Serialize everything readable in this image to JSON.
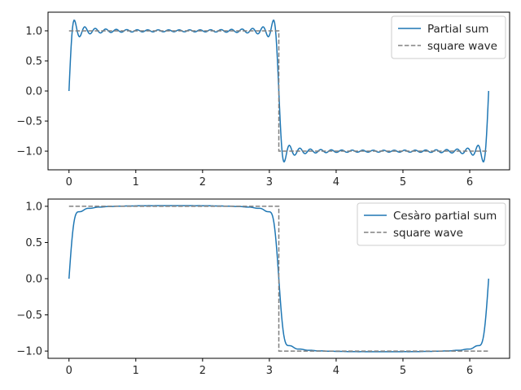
{
  "chart_data": [
    {
      "type": "line",
      "title": "",
      "xlabel": "",
      "ylabel": "",
      "xlim": [
        -0.314,
        6.597
      ],
      "ylim": [
        -1.31,
        1.31
      ],
      "xticks": [
        0,
        1,
        2,
        3,
        4,
        5,
        6
      ],
      "yticks": [
        -1.0,
        -0.5,
        0.0,
        0.5,
        1.0
      ],
      "xtick_labels": [
        "0",
        "1",
        "2",
        "3",
        "4",
        "5",
        "6"
      ],
      "ytick_labels": [
        "−1.0",
        "−0.5",
        "0.0",
        "0.5",
        "1.0"
      ],
      "grid": false,
      "legend_position": "top-right",
      "series": [
        {
          "name": "Partial sum",
          "style": "solid",
          "color": "#1f77b4",
          "function": "fourier_partial_sum",
          "terms": 20,
          "x_range": [
            0,
            6.2832
          ],
          "samples": 600
        },
        {
          "name": "square wave",
          "style": "dashed",
          "color": "#808080",
          "x": [
            0,
            3.1416,
            3.1416,
            6.2832
          ],
          "values": [
            1,
            1,
            -1,
            -1
          ]
        }
      ]
    },
    {
      "type": "line",
      "title": "",
      "xlabel": "",
      "ylabel": "",
      "xlim": [
        -0.314,
        6.597
      ],
      "ylim": [
        -1.1,
        1.1
      ],
      "xticks": [
        0,
        1,
        2,
        3,
        4,
        5,
        6
      ],
      "yticks": [
        -1.0,
        -0.5,
        0.0,
        0.5,
        1.0
      ],
      "xtick_labels": [
        "0",
        "1",
        "2",
        "3",
        "4",
        "5",
        "6"
      ],
      "ytick_labels": [
        "−1.0",
        "−0.5",
        "0.0",
        "0.5",
        "1.0"
      ],
      "grid": false,
      "legend_position": "top-right",
      "series": [
        {
          "name": "Cesàro partial sum",
          "style": "solid",
          "color": "#1f77b4",
          "function": "cesaro_partial_sum",
          "terms": 20,
          "x_range": [
            0,
            6.2832
          ],
          "samples": 600
        },
        {
          "name": "square wave",
          "style": "dashed",
          "color": "#808080",
          "x": [
            0,
            3.1416,
            3.1416,
            6.2832
          ],
          "values": [
            1,
            1,
            -1,
            -1
          ]
        }
      ]
    }
  ]
}
